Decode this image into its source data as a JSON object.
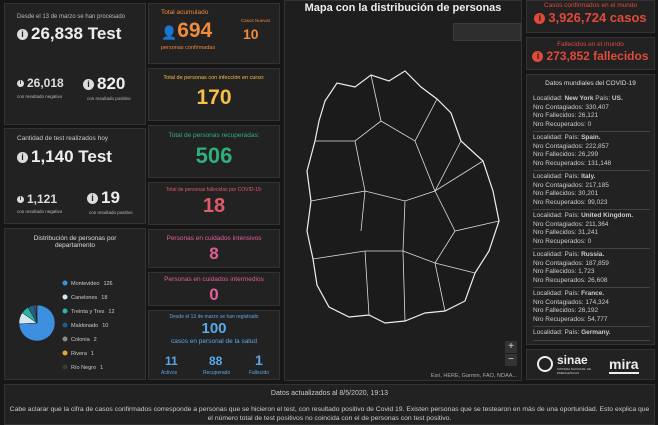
{
  "tests_total": {
    "caption": "Desde el 13 de marzo se han procesado",
    "value": "26,838 Test",
    "negative": "26,018",
    "negative_label": "con resultado negativo",
    "positive": "820",
    "positive_label": "con resultado positivo"
  },
  "tests_today": {
    "caption": "Cantidad de test realizados hoy",
    "value": "1,140 Test",
    "negative": "1,121",
    "negative_label": "con resultado negativo",
    "positive": "19",
    "positive_label": "con resultado positivo"
  },
  "departments": {
    "title": "Distribución de personas por departamento",
    "items": [
      {
        "name": "Montevideo",
        "value": 126,
        "color": "#3d8fe0"
      },
      {
        "name": "Canelones",
        "value": 18,
        "color": "#cfe9f7"
      },
      {
        "name": "Treinta y Tres",
        "value": 12,
        "color": "#2fb3a0"
      },
      {
        "name": "Maldonado",
        "value": 10,
        "color": "#1f5f8f"
      },
      {
        "name": "Colonia",
        "value": 2,
        "color": "#8a8a8a"
      },
      {
        "name": "Rivera",
        "value": 1,
        "color": "#e9a23b"
      },
      {
        "name": "Río Negro",
        "value": 1,
        "color": "#3a3a3a"
      }
    ]
  },
  "accumulated": {
    "title": "Total acumulado",
    "value": "694",
    "label": "personas confirmadas",
    "new_title": "Casos Nuevos",
    "new_value": "10"
  },
  "active": {
    "title": "Total de personas con infección en curso:",
    "value": "170"
  },
  "recovered": {
    "title": "Total de personas recuperadas:",
    "value": "506"
  },
  "deceased": {
    "title": "Total de personas fallecidas por COVID-19:",
    "value": "18"
  },
  "intensive": {
    "title": "Personas en cuidados intensivos",
    "value": "8"
  },
  "intermediate": {
    "title": "Personas en cuidados intermedios",
    "value": "0"
  },
  "health_staff": {
    "caption": "Desde el 13 de marzo se han registrado",
    "value": "100",
    "label": "casos en personal de la salud",
    "active": "11",
    "active_label": "Activos",
    "recovered": "88",
    "recovered_label": "Recuperado",
    "deceased": "1",
    "deceased_label": "Fallecido"
  },
  "map": {
    "title": "Mapa con la distribución de personas",
    "attribution": "Esri, HERE, Garmin, FAO, NOAA..."
  },
  "world_cases": {
    "title": "Casos confirmados en el mundo",
    "value": "3,926,724 casos"
  },
  "world_deaths": {
    "title": "Fallecidos en el mundo",
    "value": "273,852 fallecidos"
  },
  "world_list": {
    "title": "Datos mundiales del COVID-19",
    "labels": {
      "locality": "Localidad:",
      "country": "País:",
      "infected": "Nro Contagiados:",
      "deaths": "Nro Fallecidos:",
      "recovered": "Nro Recuperados:"
    },
    "items": [
      {
        "locality": "New York",
        "country": "US.",
        "infected": "330,407",
        "deaths": "26,121",
        "recovered": "0"
      },
      {
        "locality": null,
        "country": "Spain.",
        "infected": "222,857",
        "deaths": "26,299",
        "recovered": "131,148"
      },
      {
        "locality": null,
        "country": "Italy.",
        "infected": "217,185",
        "deaths": "30,201",
        "recovered": "99,023"
      },
      {
        "locality": null,
        "country": "United Kingdom.",
        "infected": "211,364",
        "deaths": "31,241",
        "recovered": "0"
      },
      {
        "locality": null,
        "country": "Russia.",
        "infected": "187,859",
        "deaths": "1,723",
        "recovered": "26,608"
      },
      {
        "locality": null,
        "country": "France.",
        "infected": "174,324",
        "deaths": "26,192",
        "recovered": "54,777"
      },
      {
        "locality": null,
        "country": "Germany.",
        "infected": null,
        "deaths": null,
        "recovered": null
      }
    ]
  },
  "logos": {
    "sinae": "sinae",
    "sinae_sub": "SISTEMA NACIONAL DE EMERGENCIAS",
    "mira": "mira"
  },
  "footer": {
    "updated": "Datos actualizados al 8/5/2020, 19:13",
    "note": "Cabe aclarar que la cifra de casos confirmados corresponde a personas que se hicieron el test, con resultado positivo de Covid 19. Existen personas que se testearon en más de una oportunidad. Esto explica que el número total de test positivos no coincida con el de personas con test positivo."
  }
}
